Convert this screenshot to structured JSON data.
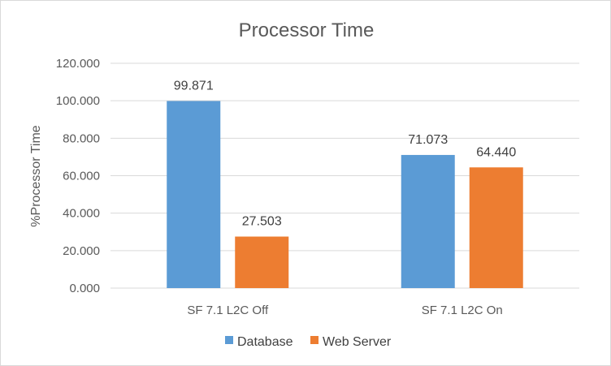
{
  "chart_data": {
    "type": "bar",
    "title": "Processor Time",
    "xlabel": "",
    "ylabel": "%Processor Time",
    "categories": [
      "SF 7.1 L2C Off",
      "SF 7.1 L2C On"
    ],
    "series": [
      {
        "name": "Database",
        "color": "#5b9bd5",
        "values": [
          99.871,
          71.073
        ],
        "labels": [
          "99.871",
          "71.073"
        ]
      },
      {
        "name": "Web Server",
        "color": "#ed7d31",
        "values": [
          27.503,
          64.44
        ],
        "labels": [
          "27.503",
          "64.440"
        ]
      }
    ],
    "ylim": [
      0,
      120
    ],
    "yticks": [
      0,
      20,
      40,
      60,
      80,
      100,
      120
    ],
    "ytick_labels": [
      "0.000",
      "20.000",
      "40.000",
      "60.000",
      "80.000",
      "100.000",
      "120.000"
    ],
    "grid": true,
    "legend": "bottom"
  }
}
